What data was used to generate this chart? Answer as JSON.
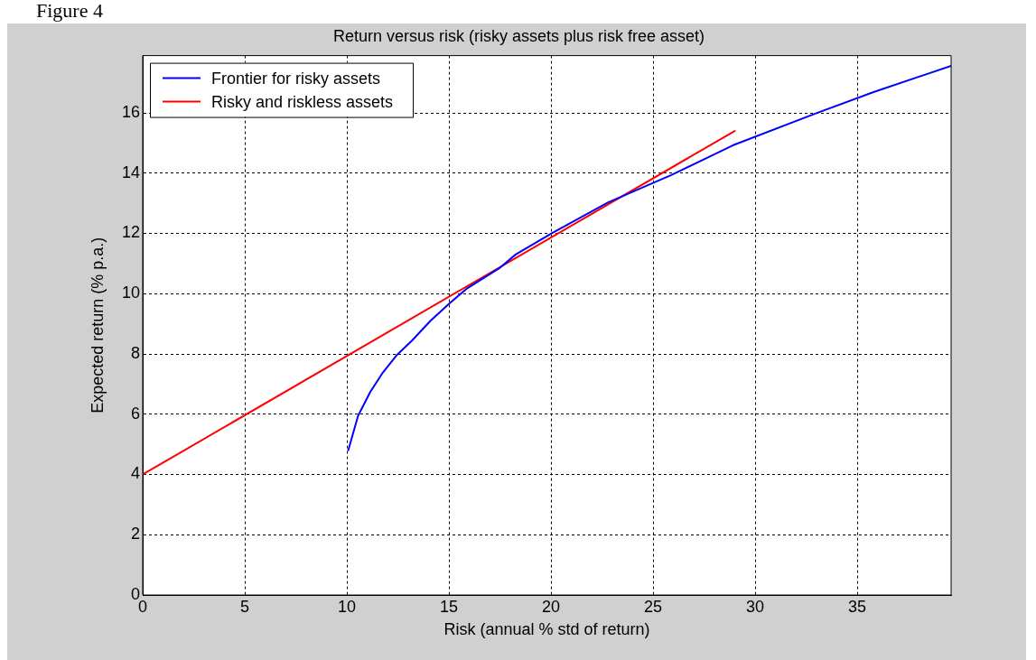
{
  "chart_data": {
    "type": "line",
    "title": "Return versus risk (risky assets plus risk free asset)",
    "xlabel": "Risk (annual % std of return)",
    "ylabel": "Expected return (% p.a.)",
    "annotations": [
      "Figure 4"
    ],
    "xlim": [
      0,
      39.6
    ],
    "ylim": [
      0,
      17.9
    ],
    "xticks": [
      0,
      5,
      10,
      15,
      20,
      25,
      30,
      35
    ],
    "yticks": [
      0,
      2,
      4,
      6,
      8,
      10,
      12,
      14,
      16
    ],
    "grid": true,
    "legend": "top left",
    "line_style": "solid",
    "marker": "none",
    "series": [
      {
        "name": "Frontier for risky assets",
        "color": "#0000ff",
        "x": [
          10.07,
          10.55,
          11.15,
          11.73,
          12.47,
          13.2,
          14.1,
          14.98,
          15.86,
          17.5,
          18.27,
          20.0,
          22.8,
          25.87,
          28.9,
          33.0,
          35.8,
          39.6
        ],
        "values": [
          4.8,
          5.95,
          6.74,
          7.35,
          7.98,
          8.45,
          9.1,
          9.65,
          10.16,
          10.86,
          11.3,
          11.99,
          13.03,
          13.93,
          14.92,
          15.99,
          16.69,
          17.56
        ]
      },
      {
        "name": "Risky and riskless assets",
        "color": "#ff0000",
        "x": [
          0,
          29.0
        ],
        "values": [
          4,
          15.4
        ]
      }
    ]
  }
}
